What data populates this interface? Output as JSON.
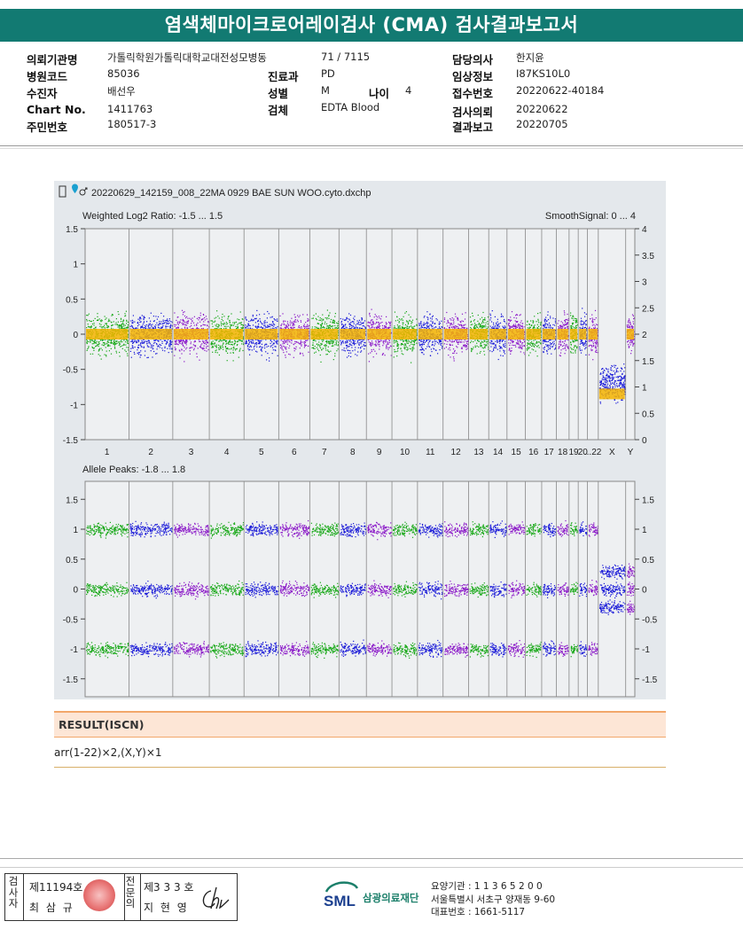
{
  "title": "염색체마이크로어레이검사 (CMA) 검사결과보고서",
  "header": {
    "fields": [
      {
        "label": "의뢰기관명",
        "value": "가톨릭학원가톨릭대학교대전성모병동"
      },
      {
        "label": "병원코드",
        "value": "85036"
      },
      {
        "label": "수진자",
        "value": "배선우"
      },
      {
        "label": "Chart No.",
        "value": "1411763"
      },
      {
        "label": "주민번호",
        "value": "180517-3"
      },
      {
        "label": "",
        "value": "71 / 7115"
      },
      {
        "label": "진료과",
        "value": "PD"
      },
      {
        "label": "성별",
        "value": "M"
      },
      {
        "label": "나이",
        "value": "4"
      },
      {
        "label": "검체",
        "value": "EDTA Blood"
      },
      {
        "label": "담당의사",
        "value": "한지윤"
      },
      {
        "label": "임상정보",
        "value": "I87KS10L0"
      },
      {
        "label": "접수번호",
        "value": "20220622-40184"
      },
      {
        "label": "검사의뢰",
        "value": "20220622"
      },
      {
        "label": "결과보고",
        "value": "20220705"
      }
    ]
  },
  "plot": {
    "filename": "20220629_142159_008_22MA 0929 BAE SUN WOO.cyto.dxchp",
    "top_left_label": "Weighted Log2 Ratio: -1.5 ... 1.5",
    "top_right_label": "SmoothSignal: 0 ... 4",
    "bottom_left_label": "Allele Peaks: -1.8 ... 1.8",
    "top_left_ticks": [
      "1.5",
      "1",
      "0.5",
      "0",
      "-0.5",
      "-1",
      "-1.5"
    ],
    "top_right_ticks": [
      "4",
      "3.5",
      "3",
      "2.5",
      "2",
      "1.5",
      "1",
      "0.5",
      "0"
    ],
    "bottom_ticks": [
      "1.5",
      "1",
      "0.5",
      "0",
      "-0.5",
      "-1",
      "-1.5"
    ],
    "chromosome_labels": [
      "1",
      "2",
      "3",
      "4",
      "5",
      "6",
      "7",
      "8",
      "9",
      "10",
      "11",
      "12",
      "13",
      "14",
      "15",
      "16",
      "17",
      "18",
      "19",
      "20",
      "...22",
      "X",
      "Y"
    ],
    "colors": {
      "green": "#18a818",
      "blue": "#1a1ad8",
      "purple": "#8a18c8",
      "orange": "#f5b400"
    }
  },
  "result": {
    "heading": "RESULT(ISCN)",
    "value": "arr(1-22)×2,(X,Y)×1"
  },
  "footer": {
    "examiner_label": "검사자",
    "examiner_license": "제11194호",
    "examiner_name": "최 삼 규",
    "physician_label": "전문의",
    "physician_license": "제3 3 3 호",
    "physician_name": "지 현 영",
    "org_logo": "SML",
    "org_name": "삼광의료재단",
    "address_lines": [
      "요양기관 : 1 1 3 6 5 2 0 0",
      "서울특별시 서초구 양재동 9-60",
      "대표번호 : 1661-5117"
    ]
  }
}
